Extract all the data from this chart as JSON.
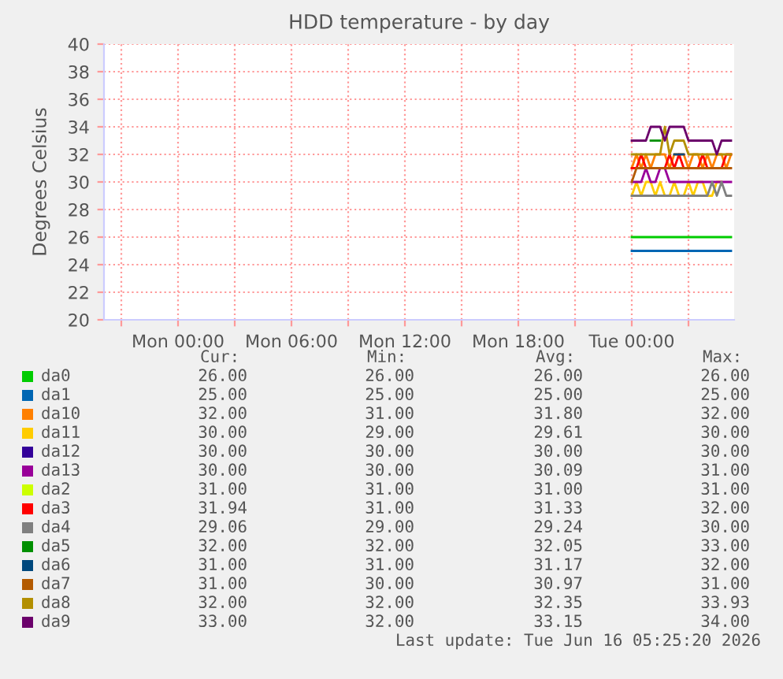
{
  "chart_data": {
    "type": "line",
    "title": "HDD temperature - by day",
    "ylabel": "Degrees Celsius",
    "x": [
      "2026-06-16T00:00",
      "2026-06-16T00:15",
      "2026-06-16T00:30",
      "2026-06-16T00:45",
      "2026-06-16T01:00",
      "2026-06-16T01:15",
      "2026-06-16T01:30",
      "2026-06-16T01:45",
      "2026-06-16T02:00",
      "2026-06-16T02:15",
      "2026-06-16T02:30",
      "2026-06-16T02:45",
      "2026-06-16T03:00",
      "2026-06-16T03:15",
      "2026-06-16T03:30",
      "2026-06-16T03:45",
      "2026-06-16T04:00",
      "2026-06-16T04:15",
      "2026-06-16T04:30",
      "2026-06-16T04:45",
      "2026-06-16T05:00",
      "2026-06-16T05:15"
    ],
    "xlim": [
      "2026-06-14T20:05",
      "2026-06-16T05:25"
    ],
    "xticks": [
      {
        "value": "2026-06-14T21:00",
        "label": null
      },
      {
        "value": "2026-06-15T00:00",
        "label": "Mon 00:00"
      },
      {
        "value": "2026-06-15T03:00",
        "label": null
      },
      {
        "value": "2026-06-15T06:00",
        "label": "Mon 06:00"
      },
      {
        "value": "2026-06-15T09:00",
        "label": null
      },
      {
        "value": "2026-06-15T12:00",
        "label": "Mon 12:00"
      },
      {
        "value": "2026-06-15T15:00",
        "label": null
      },
      {
        "value": "2026-06-15T18:00",
        "label": "Mon 18:00"
      },
      {
        "value": "2026-06-15T21:00",
        "label": null
      },
      {
        "value": "2026-06-16T00:00",
        "label": "Tue 00:00"
      },
      {
        "value": "2026-06-16T03:00",
        "label": null
      }
    ],
    "ylim": [
      20,
      40
    ],
    "yticks": [
      20,
      22,
      24,
      26,
      28,
      30,
      32,
      34,
      36,
      38,
      40
    ],
    "grid": true,
    "legend": "bottom left",
    "series": [
      {
        "name": "da0",
        "color": "#00cc00",
        "values": [
          26,
          26,
          26,
          26,
          26,
          26,
          26,
          26,
          26,
          26,
          26,
          26,
          26,
          26,
          26,
          26,
          26,
          26,
          26,
          26,
          26,
          26
        ]
      },
      {
        "name": "da1",
        "color": "#0066b3",
        "values": [
          25,
          25,
          25,
          25,
          25,
          25,
          25,
          25,
          25,
          25,
          25,
          25,
          25,
          25,
          25,
          25,
          25,
          25,
          25,
          25,
          25,
          25
        ]
      },
      {
        "name": "da10",
        "color": "#ff8000",
        "values": [
          31,
          32,
          31,
          32,
          31,
          32,
          32,
          32,
          31,
          32,
          32,
          32,
          31,
          32,
          32,
          31,
          32,
          31,
          32,
          32,
          31,
          32
        ]
      },
      {
        "name": "da11",
        "color": "#ffcc00",
        "values": [
          29,
          30,
          29,
          30,
          30,
          29,
          30,
          29,
          29,
          30,
          29,
          29,
          30,
          29,
          30,
          30,
          29,
          29,
          30,
          30,
          null,
          null
        ]
      },
      {
        "name": "da12",
        "color": "#330099",
        "values": [
          null,
          null,
          null,
          null,
          null,
          null,
          null,
          null,
          null,
          null,
          null,
          null,
          null,
          null,
          null,
          null,
          null,
          null,
          null,
          null,
          null,
          null
        ]
      },
      {
        "name": "da13",
        "color": "#990099",
        "values": [
          30,
          30,
          30,
          31,
          30,
          30,
          31,
          31,
          30,
          30,
          30,
          30,
          30,
          30,
          30,
          30,
          30,
          30,
          30,
          30,
          30,
          30
        ]
      },
      {
        "name": "da2",
        "color": "#ccff00",
        "values": [
          null,
          null,
          null,
          null,
          null,
          null,
          null,
          null,
          null,
          null,
          null,
          null,
          null,
          null,
          null,
          null,
          null,
          null,
          null,
          null,
          null,
          null
        ]
      },
      {
        "name": "da3",
        "color": "#ff0000",
        "values": [
          31,
          31,
          32,
          31,
          31,
          31,
          31,
          31,
          32,
          31,
          32,
          31,
          31,
          31,
          31,
          32,
          31,
          31,
          31,
          31,
          32,
          32
        ]
      },
      {
        "name": "da4",
        "color": "#808080",
        "values": [
          29,
          29,
          29,
          29,
          29,
          29,
          29,
          29,
          29,
          29,
          29,
          29,
          29,
          29,
          29,
          29,
          29,
          30,
          29,
          30,
          29,
          29
        ]
      },
      {
        "name": "da5",
        "color": "#008f00",
        "values": [
          null,
          null,
          null,
          null,
          33,
          33,
          33,
          null,
          null,
          null,
          null,
          null,
          null,
          null,
          null,
          null,
          null,
          null,
          null,
          null,
          null,
          null
        ]
      },
      {
        "name": "da6",
        "color": "#00487d",
        "values": [
          null,
          null,
          null,
          null,
          null,
          null,
          null,
          null,
          null,
          32,
          32,
          32,
          null,
          null,
          null,
          null,
          null,
          null,
          null,
          null,
          null,
          null
        ]
      },
      {
        "name": "da7",
        "color": "#b35a00",
        "values": [
          30,
          31,
          31,
          31,
          31,
          31,
          31,
          31,
          31,
          31,
          31,
          31,
          31,
          31,
          31,
          31,
          31,
          31,
          31,
          31,
          31,
          31
        ]
      },
      {
        "name": "da8",
        "color": "#b38f00",
        "values": [
          32,
          32,
          32,
          32,
          32,
          32,
          32,
          34,
          32,
          33,
          33,
          33,
          32,
          32,
          32,
          32,
          32,
          32,
          32,
          32,
          32,
          32
        ]
      },
      {
        "name": "da9",
        "color": "#6b006b",
        "values": [
          33,
          33,
          33,
          33,
          34,
          34,
          34,
          33,
          34,
          34,
          34,
          34,
          33,
          33,
          33,
          33,
          33,
          33,
          32,
          33,
          33,
          33
        ]
      }
    ],
    "annotations": [
      "Cur:",
      "Min:",
      "Avg:",
      "Max:",
      "26.00",
      "26.00",
      "26.00",
      "26.00",
      "25.00",
      "25.00",
      "25.00",
      "25.00",
      "32.00",
      "31.00",
      "31.80",
      "32.00",
      "30.00",
      "29.00",
      "29.61",
      "30.00",
      "30.00",
      "30.00",
      "30.00",
      "30.00",
      "30.00",
      "30.00",
      "30.09",
      "31.00",
      "31.00",
      "31.00",
      "31.00",
      "31.00",
      "31.94",
      "31.00",
      "31.33",
      "32.00",
      "29.06",
      "29.00",
      "29.24",
      "30.00",
      "32.00",
      "32.00",
      "32.05",
      "33.00",
      "31.00",
      "31.00",
      "31.17",
      "32.00",
      "31.00",
      "30.00",
      "30.97",
      "31.00",
      "32.00",
      "32.00",
      "32.35",
      "33.93",
      "33.00",
      "32.00",
      "33.15",
      "34.00",
      "Last update: Tue Jun 16 05:25:20 2026"
    ]
  }
}
